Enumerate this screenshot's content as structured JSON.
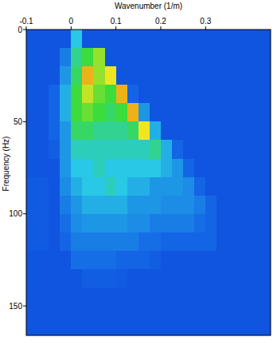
{
  "chart_data": {
    "type": "heatmap",
    "x_label": "Wavenumber (1/m)",
    "y_label": "Frequency (Hz)",
    "xlim": [
      -0.1,
      0.445
    ],
    "ylim": [
      0,
      166
    ],
    "xticks": [
      -0.1,
      0,
      0.1,
      0.2,
      0.3
    ],
    "yticks": [
      0,
      50,
      100,
      150
    ],
    "zlim": [
      0,
      1
    ],
    "x_bins": [
      -0.1,
      -0.075,
      -0.05,
      -0.025,
      0,
      0.025,
      0.05,
      0.075,
      0.1,
      0.125,
      0.15,
      0.175,
      0.2,
      0.225,
      0.25,
      0.275,
      0.3,
      0.325,
      0.35,
      0.375,
      0.4,
      0.425,
      0.45
    ],
    "y_bins": [
      0,
      10,
      20,
      30,
      40,
      50,
      60,
      70,
      80,
      90,
      100,
      110,
      120,
      130,
      140,
      150,
      160,
      170
    ],
    "cells": [
      [
        0.15,
        0.15,
        0.15,
        0.15,
        0.4,
        0.15,
        0.15,
        0.15,
        0.15,
        0.15,
        0.15,
        0.15,
        0.15,
        0.15,
        0.15,
        0.15,
        0.15,
        0.15,
        0.15,
        0.15,
        0.15,
        0.15
      ],
      [
        0.15,
        0.15,
        0.15,
        0.25,
        0.5,
        0.6,
        0.7,
        0.15,
        0.15,
        0.15,
        0.15,
        0.15,
        0.15,
        0.15,
        0.15,
        0.15,
        0.15,
        0.15,
        0.15,
        0.15,
        0.15,
        0.15
      ],
      [
        0.15,
        0.15,
        0.15,
        0.3,
        0.55,
        0.85,
        0.7,
        0.8,
        0.15,
        0.15,
        0.15,
        0.15,
        0.15,
        0.15,
        0.15,
        0.15,
        0.15,
        0.15,
        0.15,
        0.15,
        0.15,
        0.15
      ],
      [
        0.15,
        0.15,
        0.2,
        0.35,
        0.6,
        0.75,
        0.65,
        0.6,
        0.85,
        0.2,
        0.15,
        0.15,
        0.15,
        0.15,
        0.15,
        0.15,
        0.15,
        0.15,
        0.15,
        0.15,
        0.15,
        0.15
      ],
      [
        0.15,
        0.15,
        0.2,
        0.35,
        0.6,
        0.65,
        0.6,
        0.55,
        0.6,
        0.85,
        0.3,
        0.15,
        0.15,
        0.15,
        0.15,
        0.15,
        0.15,
        0.15,
        0.15,
        0.15,
        0.15,
        0.15
      ],
      [
        0.15,
        0.15,
        0.2,
        0.3,
        0.55,
        0.55,
        0.5,
        0.5,
        0.5,
        0.55,
        0.8,
        0.35,
        0.15,
        0.15,
        0.15,
        0.15,
        0.15,
        0.15,
        0.15,
        0.15,
        0.15,
        0.15
      ],
      [
        0.15,
        0.15,
        0.18,
        0.3,
        0.45,
        0.45,
        0.45,
        0.45,
        0.45,
        0.45,
        0.45,
        0.5,
        0.35,
        0.2,
        0.15,
        0.15,
        0.15,
        0.15,
        0.15,
        0.15,
        0.15,
        0.15
      ],
      [
        0.15,
        0.15,
        0.15,
        0.3,
        0.4,
        0.4,
        0.45,
        0.4,
        0.4,
        0.4,
        0.4,
        0.4,
        0.35,
        0.3,
        0.2,
        0.15,
        0.15,
        0.15,
        0.15,
        0.15,
        0.15,
        0.15
      ],
      [
        0.17,
        0.17,
        0.15,
        0.28,
        0.35,
        0.4,
        0.4,
        0.45,
        0.4,
        0.35,
        0.35,
        0.3,
        0.3,
        0.3,
        0.28,
        0.2,
        0.15,
        0.15,
        0.15,
        0.15,
        0.15,
        0.15
      ],
      [
        0.17,
        0.17,
        0.15,
        0.25,
        0.3,
        0.35,
        0.35,
        0.35,
        0.35,
        0.3,
        0.3,
        0.3,
        0.28,
        0.28,
        0.28,
        0.25,
        0.2,
        0.15,
        0.15,
        0.15,
        0.15,
        0.15
      ],
      [
        0.17,
        0.17,
        0.15,
        0.22,
        0.28,
        0.3,
        0.3,
        0.3,
        0.3,
        0.28,
        0.28,
        0.25,
        0.25,
        0.25,
        0.25,
        0.22,
        0.2,
        0.15,
        0.15,
        0.15,
        0.15,
        0.15
      ],
      [
        0.17,
        0.17,
        0.15,
        0.2,
        0.25,
        0.25,
        0.25,
        0.25,
        0.25,
        0.25,
        0.22,
        0.22,
        0.2,
        0.2,
        0.2,
        0.2,
        0.2,
        0.15,
        0.15,
        0.15,
        0.15,
        0.15
      ],
      [
        0.15,
        0.15,
        0.15,
        0.15,
        0.22,
        0.22,
        0.22,
        0.22,
        0.2,
        0.2,
        0.2,
        0.18,
        0.15,
        0.15,
        0.15,
        0.15,
        0.15,
        0.15,
        0.15,
        0.15,
        0.15,
        0.15
      ],
      [
        0.15,
        0.15,
        0.15,
        0.15,
        0.15,
        0.18,
        0.18,
        0.18,
        0.17,
        0.15,
        0.15,
        0.15,
        0.15,
        0.15,
        0.15,
        0.15,
        0.15,
        0.15,
        0.15,
        0.15,
        0.15,
        0.15
      ],
      [
        0.15,
        0.15,
        0.15,
        0.15,
        0.15,
        0.15,
        0.15,
        0.15,
        0.15,
        0.15,
        0.15,
        0.15,
        0.15,
        0.15,
        0.15,
        0.15,
        0.15,
        0.15,
        0.15,
        0.15,
        0.15,
        0.15
      ],
      [
        0.15,
        0.15,
        0.15,
        0.15,
        0.15,
        0.15,
        0.15,
        0.15,
        0.15,
        0.15,
        0.15,
        0.15,
        0.15,
        0.15,
        0.15,
        0.15,
        0.15,
        0.15,
        0.15,
        0.15,
        0.15,
        0.15
      ],
      [
        0.15,
        0.15,
        0.15,
        0.15,
        0.15,
        0.15,
        0.15,
        0.15,
        0.15,
        0.15,
        0.15,
        0.15,
        0.15,
        0.15,
        0.15,
        0.15,
        0.15,
        0.15,
        0.15,
        0.15,
        0.15,
        0.15
      ]
    ]
  }
}
